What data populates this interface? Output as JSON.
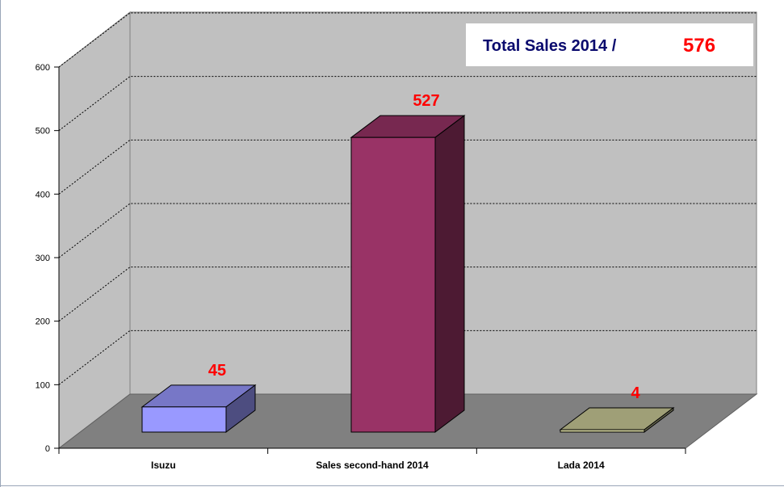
{
  "chart_data": {
    "type": "bar",
    "categories": [
      "Isuzu",
      "Sales second-hand 2014",
      "Lada 2014"
    ],
    "values": [
      45,
      527,
      4
    ],
    "data_labels": [
      "45",
      "527",
      "4"
    ],
    "ylim": [
      0,
      600
    ],
    "yticks": [
      "0",
      "100",
      "200",
      "300",
      "400",
      "500",
      "600"
    ],
    "grid": true,
    "three_d": true,
    "total_box": {
      "label": "Total Sales 2014 /",
      "value": "576",
      "position": "top-right"
    },
    "colors": {
      "bars": [
        "#9999ff",
        "#993366",
        "#cccc99"
      ],
      "wall": "#c0c0c0",
      "floor": "#808080",
      "data_label": "#ff0000",
      "total_label": "#0a0a6e"
    }
  }
}
